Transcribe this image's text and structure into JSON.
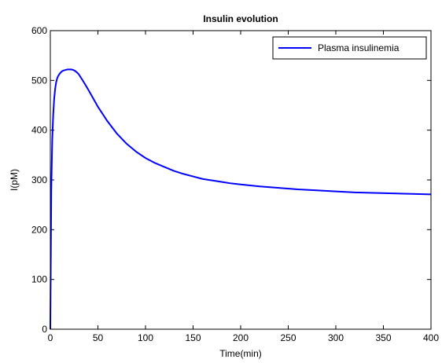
{
  "chart_data": {
    "type": "line",
    "title": "Insulin evolution",
    "xlabel": "Time(min)",
    "ylabel": "I(pM)",
    "xlim": [
      0,
      400
    ],
    "ylim": [
      0,
      600
    ],
    "xticks": [
      0,
      50,
      100,
      150,
      200,
      250,
      300,
      350,
      400
    ],
    "yticks": [
      0,
      100,
      200,
      300,
      400,
      500,
      600
    ],
    "xtick_labels": [
      "0",
      "50",
      "100",
      "150",
      "200",
      "250",
      "300",
      "350",
      "400"
    ],
    "ytick_labels": [
      "0",
      "100",
      "200",
      "300",
      "400",
      "500",
      "600"
    ],
    "grid": false,
    "legend_position": "top-right",
    "series": [
      {
        "name": "Plasma insulinemia",
        "color": "#0000ff",
        "x": [
          0,
          1,
          2,
          3,
          4,
          5,
          6,
          7,
          8,
          10,
          12,
          14,
          16,
          18,
          20,
          22,
          24,
          26,
          28,
          30,
          35,
          40,
          45,
          50,
          60,
          70,
          80,
          90,
          100,
          110,
          120,
          130,
          140,
          150,
          160,
          170,
          180,
          190,
          200,
          220,
          240,
          260,
          280,
          300,
          320,
          340,
          360,
          380,
          400
        ],
        "y": [
          0,
          280,
          380,
          430,
          462,
          482,
          495,
          503,
          508,
          514,
          518,
          520,
          521,
          522,
          522,
          522,
          521,
          519,
          516,
          512,
          497,
          481,
          464,
          447,
          418,
          393,
          373,
          357,
          344,
          334,
          326,
          318,
          312,
          307,
          302,
          299,
          296,
          293,
          291,
          287,
          284,
          281,
          279,
          277,
          275,
          274,
          273,
          272,
          271
        ]
      }
    ]
  }
}
